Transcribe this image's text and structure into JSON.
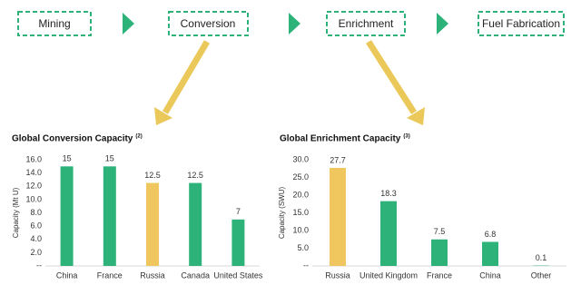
{
  "flow": {
    "steps": [
      "Mining",
      "Conversion",
      "Enrichment",
      "Fuel Fabrication"
    ]
  },
  "chart_data": [
    {
      "type": "bar",
      "title": "Global Conversion Capacity",
      "title_note": "(2)",
      "y_label": "Capacity (Mt U)",
      "categories": [
        "China",
        "France",
        "Russia",
        "Canada",
        "United States"
      ],
      "values": [
        15,
        15,
        12.5,
        12.5,
        7
      ],
      "colors": [
        "#2db37a",
        "#2db37a",
        "#f0c75e",
        "#2db37a",
        "#2db37a"
      ],
      "ylim": [
        0,
        16
      ],
      "yticks": [
        {
          "value": 0,
          "label": "--"
        },
        {
          "value": 2,
          "label": "2.0"
        },
        {
          "value": 4,
          "label": "4.0"
        },
        {
          "value": 6,
          "label": "6.0"
        },
        {
          "value": 8,
          "label": "8.0"
        },
        {
          "value": 10,
          "label": "10.0"
        },
        {
          "value": 12,
          "label": "12.0"
        },
        {
          "value": 14,
          "label": "14.0"
        },
        {
          "value": 16,
          "label": "16.0"
        }
      ],
      "grid": false
    },
    {
      "type": "bar",
      "title": "Global Enrichment Capacity",
      "title_note": "(3)",
      "y_label": "Capacity (SWU)",
      "categories": [
        "Russia",
        "United Kingdom",
        "France",
        "China",
        "Other"
      ],
      "values": [
        27.7,
        18.3,
        7.5,
        6.8,
        0.1
      ],
      "colors": [
        "#f0c75e",
        "#2db37a",
        "#2db37a",
        "#2db37a",
        "#2db37a"
      ],
      "ylim": [
        0,
        30
      ],
      "yticks": [
        {
          "value": 0,
          "label": "--"
        },
        {
          "value": 5,
          "label": "5.0"
        },
        {
          "value": 10,
          "label": "10.0"
        },
        {
          "value": 15,
          "label": "15.0"
        },
        {
          "value": 20,
          "label": "20.0"
        },
        {
          "value": 25,
          "label": "25.0"
        },
        {
          "value": 30,
          "label": "30.0"
        }
      ],
      "grid": false
    }
  ]
}
